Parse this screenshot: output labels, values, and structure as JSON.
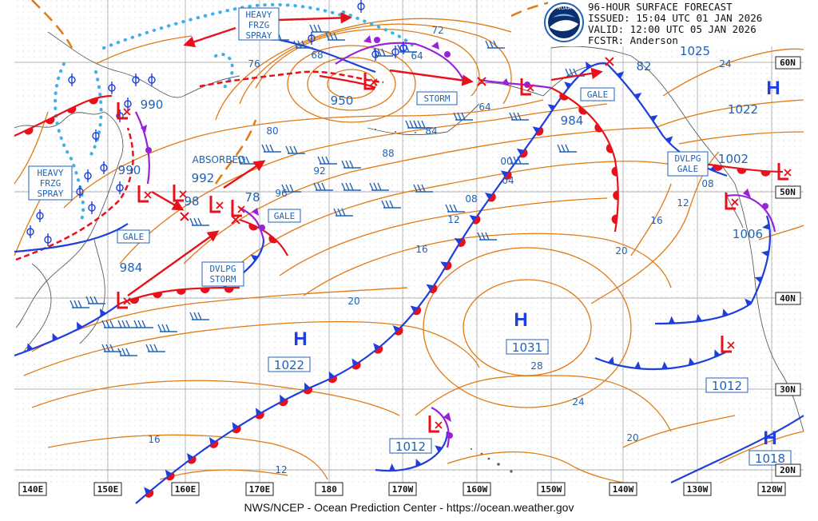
{
  "header": {
    "line1": "96-HOUR SURFACE FORECAST",
    "line2": "ISSUED: 15:04 UTC 01 JAN 2026",
    "line3": "VALID:  12:00 UTC 05 JAN 2026",
    "line4": "FCSTR:  Anderson"
  },
  "logo_text": "NOAA",
  "footer": "NWS/NCEP - Ocean Prediction Center - https://ocean.weather.gov",
  "longitude_labels": [
    "140E",
    "150E",
    "160E",
    "170E",
    "180",
    "170W",
    "160W",
    "150W",
    "140W",
    "130W",
    "120W"
  ],
  "latitude_labels": [
    "60N",
    "50N",
    "40N",
    "30N",
    "20N"
  ],
  "pressure_centers": [
    {
      "type": "H",
      "value": "1031"
    },
    {
      "type": "H",
      "value": "1022"
    },
    {
      "type": "H",
      "value": "1022"
    },
    {
      "type": "H",
      "value": "1018"
    },
    {
      "type": "L",
      "value": "950"
    },
    {
      "type": "L",
      "value": "984"
    },
    {
      "type": "L",
      "value": "990"
    },
    {
      "type": "L",
      "value": "990"
    },
    {
      "type": "L",
      "value": "992"
    },
    {
      "type": "L",
      "value": "98"
    },
    {
      "type": "L",
      "value": "78"
    },
    {
      "type": "L",
      "value": "984"
    },
    {
      "type": "L",
      "value": "1002"
    },
    {
      "type": "L",
      "value": "1006"
    },
    {
      "type": "L",
      "value": "1012"
    },
    {
      "type": "L",
      "value": "1012"
    }
  ],
  "warnings": [
    "HEAVY FRZG SPRAY",
    "HEAVY FRZG SPRAY",
    "STORM",
    "GALE",
    "GALE",
    "GALE",
    "DVLPG GALE",
    "DVLPG STORM"
  ],
  "annotations": [
    "ABSORBED"
  ],
  "isobar_labels": [
    "72",
    "64",
    "64",
    "68",
    "76",
    "80",
    "84",
    "88",
    "92",
    "96",
    "00",
    "04",
    "08",
    "08",
    "12",
    "12",
    "16",
    "16",
    "16",
    "20",
    "20",
    "20",
    "24",
    "24",
    "28",
    "12",
    "1025",
    "82"
  ],
  "colors": {
    "isobar": "#e07a14",
    "cold_front": "#1f3fdc",
    "warm_front": "#e8111b",
    "occluded": "#9a22d6",
    "label_blue": "#1f63b8",
    "coast": "#555555",
    "spray": "#3fb0e8"
  }
}
